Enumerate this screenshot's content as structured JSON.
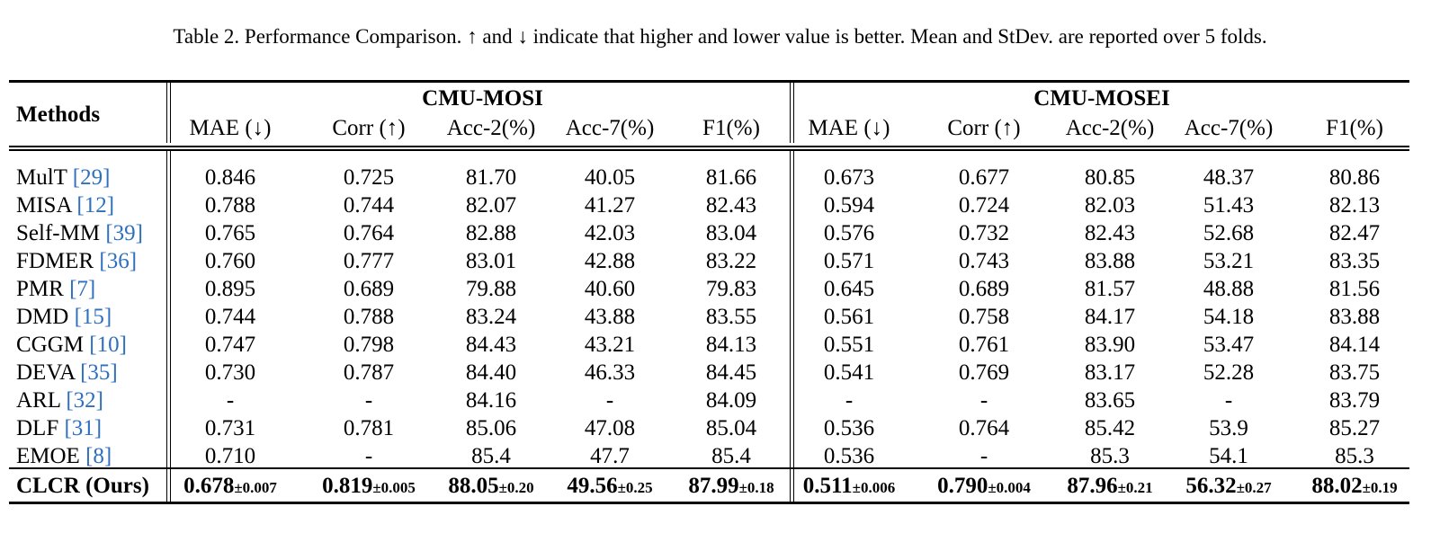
{
  "caption": "Table 2. Performance Comparison. ↑ and ↓ indicate that higher and lower value is better. Mean and StDev. are reported over 5 folds.",
  "table": {
    "methods_header": "Methods",
    "groups": [
      "CMU-MOSI",
      "CMU-MOSEI"
    ],
    "columns": [
      "MAE (↓)",
      "Corr (↑)",
      "Acc-2(%)",
      "Acc-7(%)",
      "F1(%)",
      "MAE (↓)",
      "Corr (↑)",
      "Acc-2(%)",
      "Acc-7(%)",
      "F1(%)"
    ],
    "rows": [
      {
        "name": "MulT",
        "cite": "[29]",
        "values": [
          "0.846",
          "0.725",
          "81.70",
          "40.05",
          "81.66",
          "0.673",
          "0.677",
          "80.85",
          "48.37",
          "80.86"
        ]
      },
      {
        "name": "MISA",
        "cite": "[12]",
        "values": [
          "0.788",
          "0.744",
          "82.07",
          "41.27",
          "82.43",
          "0.594",
          "0.724",
          "82.03",
          "51.43",
          "82.13"
        ]
      },
      {
        "name": "Self-MM",
        "cite": "[39]",
        "values": [
          "0.765",
          "0.764",
          "82.88",
          "42.03",
          "83.04",
          "0.576",
          "0.732",
          "82.43",
          "52.68",
          "82.47"
        ]
      },
      {
        "name": "FDMER",
        "cite": "[36]",
        "values": [
          "0.760",
          "0.777",
          "83.01",
          "42.88",
          "83.22",
          "0.571",
          "0.743",
          "83.88",
          "53.21",
          "83.35"
        ]
      },
      {
        "name": "PMR",
        "cite": "[7]",
        "values": [
          "0.895",
          "0.689",
          "79.88",
          "40.60",
          "79.83",
          "0.645",
          "0.689",
          "81.57",
          "48.88",
          "81.56"
        ]
      },
      {
        "name": "DMD",
        "cite": "[15]",
        "values": [
          "0.744",
          "0.788",
          "83.24",
          "43.88",
          "83.55",
          "0.561",
          "0.758",
          "84.17",
          "54.18",
          "83.88"
        ]
      },
      {
        "name": "CGGM",
        "cite": "[10]",
        "values": [
          "0.747",
          "0.798",
          "84.43",
          "43.21",
          "84.13",
          "0.551",
          "0.761",
          "83.90",
          "53.47",
          "84.14"
        ]
      },
      {
        "name": "DEVA",
        "cite": "[35]",
        "values": [
          "0.730",
          "0.787",
          "84.40",
          "46.33",
          "84.45",
          "0.541",
          "0.769",
          "83.17",
          "52.28",
          "83.75"
        ]
      },
      {
        "name": "ARL",
        "cite": "[32]",
        "values": [
          "-",
          "-",
          "84.16",
          "-",
          "84.09",
          "-",
          "-",
          "83.65",
          "-",
          "83.79"
        ]
      },
      {
        "name": "DLF",
        "cite": "[31]",
        "values": [
          "0.731",
          "0.781",
          "85.06",
          "47.08",
          "85.04",
          "0.536",
          "0.764",
          "85.42",
          "53.9",
          "85.27"
        ]
      },
      {
        "name": "EMOE",
        "cite": "[8]",
        "values": [
          "0.710",
          "-",
          "85.4",
          "47.7",
          "85.4",
          "0.536",
          "-",
          "85.3",
          "54.1",
          "85.3"
        ]
      }
    ],
    "ours": {
      "name": "CLCR (Ours)",
      "values": [
        "0.678",
        "0.819",
        "88.05",
        "49.56",
        "87.99",
        "0.511",
        "0.790",
        "87.96",
        "56.32",
        "88.02"
      ],
      "stdevs": [
        "±0.007",
        "±0.005",
        "±0.20",
        "±0.25",
        "±0.18",
        "±0.006",
        "±0.004",
        "±0.21",
        "±0.27",
        "±0.19"
      ]
    }
  }
}
